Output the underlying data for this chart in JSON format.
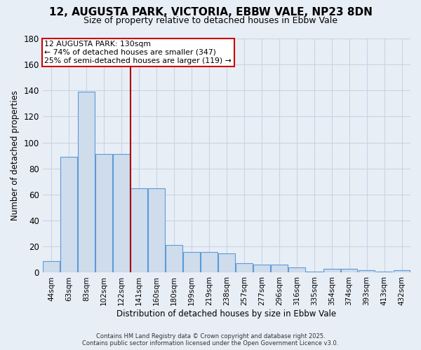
{
  "title_line1": "12, AUGUSTA PARK, VICTORIA, EBBW VALE, NP23 8DN",
  "title_line2": "Size of property relative to detached houses in Ebbw Vale",
  "xlabel": "Distribution of detached houses by size in Ebbw Vale",
  "ylabel": "Number of detached properties",
  "bar_color": "#cfdcec",
  "bar_edge_color": "#5b9bd5",
  "categories": [
    "44sqm",
    "63sqm",
    "83sqm",
    "102sqm",
    "122sqm",
    "141sqm",
    "160sqm",
    "180sqm",
    "199sqm",
    "219sqm",
    "238sqm",
    "257sqm",
    "277sqm",
    "296sqm",
    "316sqm",
    "335sqm",
    "354sqm",
    "374sqm",
    "393sqm",
    "413sqm",
    "432sqm"
  ],
  "values": [
    9,
    89,
    139,
    91,
    91,
    65,
    65,
    21,
    16,
    16,
    15,
    7,
    6,
    6,
    4,
    1,
    3,
    3,
    2,
    1,
    2
  ],
  "ylim": [
    0,
    180
  ],
  "yticks": [
    0,
    20,
    40,
    60,
    80,
    100,
    120,
    140,
    160,
    180
  ],
  "property_line_x": 4.5,
  "annotation_text": "12 AUGUSTA PARK: 130sqm\n← 74% of detached houses are smaller (347)\n25% of semi-detached houses are larger (119) →",
  "annotation_box_color": "#ffffff",
  "annotation_box_edgecolor": "#cc0000",
  "red_line_color": "#aa0000",
  "footer_line1": "Contains HM Land Registry data © Crown copyright and database right 2025.",
  "footer_line2": "Contains public sector information licensed under the Open Government Licence v3.0.",
  "background_color": "#e8eef6",
  "grid_color": "#c8d4e4",
  "title_fontsize": 11,
  "subtitle_fontsize": 9
}
